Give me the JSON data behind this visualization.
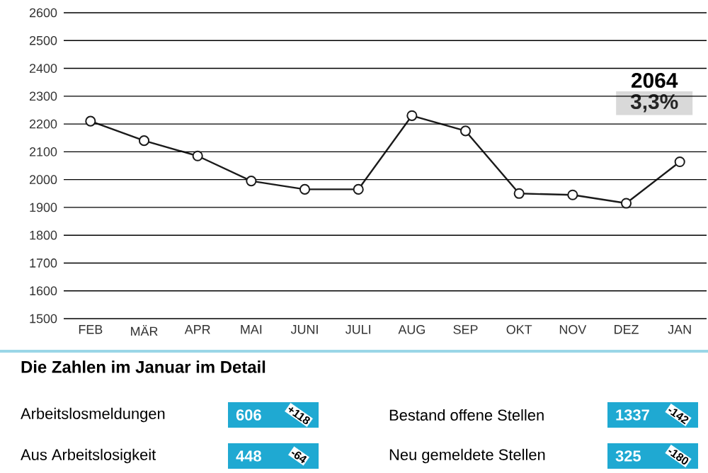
{
  "chart_data": {
    "type": "line",
    "categories": [
      "FEB",
      "MÄR",
      "APR",
      "MAI",
      "JUNI",
      "JULI",
      "AUG",
      "SEP",
      "OKT",
      "NOV",
      "DEZ",
      "JAN"
    ],
    "series": [
      {
        "color": "#1a1a1a",
        "values": [
          2210,
          2140,
          2085,
          1995,
          1965,
          1965,
          2230,
          2175,
          1950,
          1945,
          1915,
          2064
        ]
      }
    ],
    "ylim": [
      1500,
      2600
    ],
    "yticks": [
      1500,
      1600,
      1700,
      1800,
      1900,
      2000,
      2100,
      2200,
      2300,
      2400,
      2500,
      2600
    ],
    "grid": "y",
    "marker": "circle",
    "line_style": "solid",
    "annotations": [
      "2064",
      "3,3%",
      "Die Zahlen im Januar im Detail",
      "Arbeitslosmeldungen",
      "606",
      "+118",
      "Bestand offene Stellen",
      "1337",
      "-142",
      "Aus Arbeitslosigkeit",
      "448",
      "-64",
      "Neu gemeldete Stellen",
      "325",
      "-180"
    ]
  }
}
